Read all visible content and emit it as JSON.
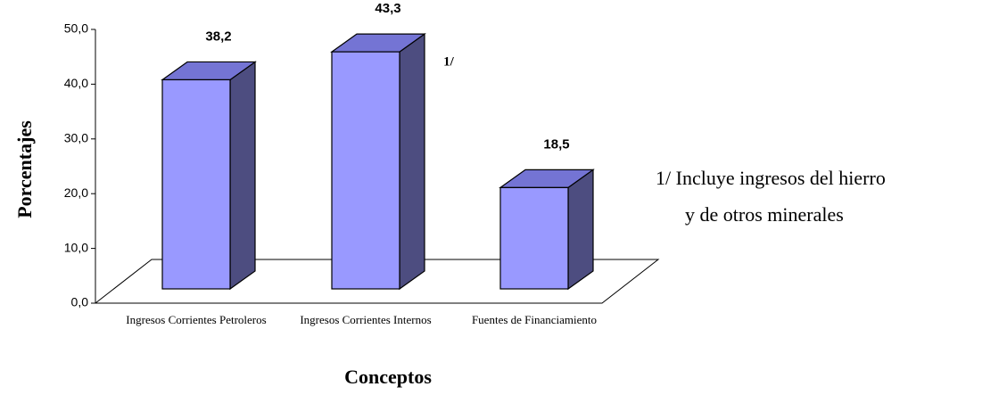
{
  "chart_data": {
    "type": "bar3d",
    "categories": [
      "Ingresos Corrientes Petroleros",
      "Ingresos Corrientes Internos",
      "Fuentes de Financiamiento"
    ],
    "values": [
      38.2,
      43.3,
      18.5
    ],
    "value_labels": [
      "38,2",
      "43,3",
      "18,5"
    ],
    "ylim": [
      0,
      50
    ],
    "yticks": [
      {
        "value": 0,
        "label": "0,0"
      },
      {
        "value": 10,
        "label": "10,0"
      },
      {
        "value": 20,
        "label": "20,0"
      },
      {
        "value": 30,
        "label": "30,0"
      },
      {
        "value": 40,
        "label": "40,0"
      },
      {
        "value": 50,
        "label": "50,0"
      }
    ],
    "ylabel": "Porcentajes",
    "xlabel": "Conceptos",
    "annotation": "1/",
    "footnote": [
      "1/ Incluye ingresos del hierro",
      "y  de otros minerales"
    ],
    "colors": {
      "front": "#9999ff",
      "side": "#4d4d80",
      "top": "#7474d4"
    }
  }
}
